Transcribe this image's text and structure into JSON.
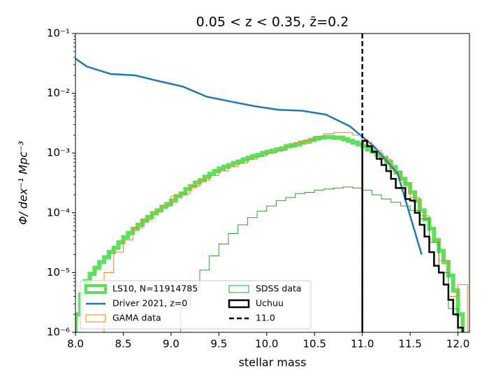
{
  "chart_data": {
    "type": "histogram",
    "title": "0.05 < z < 0.35, z̄=0.2",
    "x_label": "stellar mass",
    "y_label": "Φ/ dex⁻¹ Mpc⁻³",
    "yscale": "log",
    "xlim": [
      8.0,
      12.12
    ],
    "ylim": [
      1e-06,
      0.1
    ],
    "xticks": [
      {
        "value": 8,
        "label": "8.0"
      },
      8.5,
      {
        "value": 9,
        "label": "9.0"
      },
      9.5,
      {
        "value": 10,
        "label": "10.0"
      },
      10.5,
      {
        "value": 11,
        "label": "11.0"
      },
      11.5,
      {
        "value": 12,
        "label": "12.0"
      }
    ],
    "yticks": [
      {
        "value": 1e-06,
        "label": "10⁻⁶"
      },
      {
        "value": 1e-05,
        "label": "10⁻⁵"
      },
      {
        "value": 0.0001,
        "label": "10⁻⁴"
      },
      {
        "value": 0.001,
        "label": "10⁻³"
      },
      {
        "value": 0.01,
        "label": "10⁻²"
      },
      {
        "value": 0.1,
        "label": "10⁻¹"
      }
    ],
    "legend": "lower left",
    "legend_columns": 2,
    "series": [
      {
        "name": "LS10, N=11914785",
        "style": "step",
        "color": "#5ee05e",
        "width": 6,
        "bins": [
          8.0,
          8.05,
          8.1,
          8.15,
          8.2,
          8.25,
          8.3,
          8.35,
          8.4,
          8.45,
          8.5,
          8.55,
          8.6,
          8.65,
          8.7,
          8.75,
          8.8,
          8.85,
          8.9,
          8.95,
          9.0,
          9.05,
          9.1,
          9.15,
          9.2,
          9.25,
          9.3,
          9.35,
          9.4,
          9.45,
          9.5,
          9.55,
          9.6,
          9.65,
          9.7,
          9.75,
          9.8,
          9.85,
          9.9,
          9.95,
          10.0,
          10.05,
          10.1,
          10.15,
          10.2,
          10.25,
          10.3,
          10.35,
          10.4,
          10.45,
          10.5,
          10.55,
          10.6,
          10.65,
          10.7,
          10.75,
          10.8,
          10.85,
          10.9,
          10.95,
          11.0,
          11.05,
          11.1,
          11.15,
          11.2,
          11.25,
          11.3,
          11.35,
          11.4,
          11.45,
          11.5,
          11.55,
          11.6,
          11.65,
          11.7,
          11.75,
          11.8,
          11.85,
          11.9,
          11.95,
          12.0,
          12.05
        ],
        "values": [
          2e-06,
          4.3e-06,
          7.2e-06,
          9.5e-06,
          1.2e-05,
          1.5e-05,
          1.8e-05,
          2.2e-05,
          2.6e-05,
          3.2e-05,
          3.9e-05,
          4.6e-05,
          5.4e-05,
          6.3e-05,
          7.4e-05,
          8.5e-05,
          9.8e-05,
          0.00011,
          0.000126,
          0.00014,
          0.00016,
          0.00019,
          0.00021,
          0.00025,
          0.00028,
          0.00032,
          0.00035,
          0.0004,
          0.00045,
          0.0005,
          0.00055,
          0.00059,
          0.00063,
          0.00068,
          0.00072,
          0.00078,
          0.00083,
          0.00089,
          0.00093,
          0.001,
          0.00105,
          0.0011,
          0.00115,
          0.0012,
          0.0013,
          0.00135,
          0.0014,
          0.0015,
          0.00155,
          0.00165,
          0.00175,
          0.0018,
          0.00185,
          0.00185,
          0.0018,
          0.0018,
          0.0017,
          0.0016,
          0.0015,
          0.0014,
          0.0013,
          0.00115,
          0.00105,
          0.00093,
          0.00083,
          0.00071,
          0.00058,
          0.00047,
          0.00037,
          0.0003,
          0.00022,
          0.00016,
          0.00011,
          7.8e-05,
          5.4e-05,
          3.5e-05,
          2.3e-05,
          1.5e-05,
          8.9e-06,
          5e-06,
          2e-06
        ]
      },
      {
        "name": "Driver 2021, z=0",
        "style": "line",
        "color": "#1f77b4",
        "width": 2.5,
        "x": [
          8.0,
          8.12,
          8.37,
          8.62,
          8.87,
          9.12,
          9.37,
          9.62,
          9.87,
          10.12,
          10.37,
          10.62,
          10.87,
          11.12,
          11.37,
          11.62
        ],
        "values": [
          0.038,
          0.028,
          0.021,
          0.02,
          0.016,
          0.013,
          0.0088,
          0.0073,
          0.0061,
          0.0053,
          0.0051,
          0.0044,
          0.0028,
          0.0013,
          0.00045,
          2e-05
        ]
      },
      {
        "name": "GAMA data",
        "style": "step",
        "color": "#ff7f0e",
        "width": 1,
        "bins": [
          8.3,
          8.4,
          8.5,
          8.6,
          8.7,
          8.8,
          8.9,
          9.0,
          9.1,
          9.2,
          9.3,
          9.4,
          9.5,
          9.6,
          9.7,
          9.8,
          9.9,
          10.0,
          10.1,
          10.2,
          10.3,
          10.4,
          10.5,
          10.6,
          10.7,
          10.8,
          10.9,
          11.0,
          11.1,
          11.2,
          11.3,
          11.4,
          11.5,
          11.6,
          11.7,
          11.8,
          11.9,
          12.0,
          12.1
        ],
        "values": [
          1e-05,
          2.2e-05,
          3.5e-05,
          5.6e-05,
          7.6e-05,
          0.000105,
          0.00013,
          0.00019,
          0.00021,
          0.00028,
          0.00035,
          0.00042,
          0.0005,
          0.00059,
          0.00068,
          0.00079,
          0.00089,
          0.001,
          0.0011,
          0.0013,
          0.0015,
          0.00165,
          0.0019,
          0.0021,
          0.0022,
          0.0022,
          0.002,
          0.0015,
          0.0011,
          0.00079,
          0.0005,
          0.00032,
          0.00018,
          8.9e-05,
          3.5e-05,
          1.6e-05,
          4e-06,
          6.3e-06
        ]
      },
      {
        "name": "SDSS data",
        "style": "step",
        "color": "#2ca02c",
        "width": 1,
        "bins": [
          9.0,
          9.1,
          9.2,
          9.3,
          9.4,
          9.5,
          9.6,
          9.7,
          9.8,
          9.9,
          10.0,
          10.1,
          10.2,
          10.3,
          10.4,
          10.5,
          10.6,
          10.7,
          10.8,
          10.9,
          11.0,
          11.1,
          11.2,
          11.3,
          11.4,
          11.5,
          11.6,
          11.7,
          11.8,
          11.9,
          12.0
        ],
        "values": [
          1e-06,
          2.5e-06,
          5.6e-06,
          1.1e-05,
          1.9e-05,
          3e-05,
          4.5e-05,
          6.3e-05,
          8.3e-05,
          0.000107,
          0.00013,
          0.00016,
          0.00018,
          0.00021,
          0.00022,
          0.00024,
          0.00025,
          0.00026,
          0.00027,
          0.00026,
          0.00024,
          0.0002,
          0.00017,
          0.00015,
          0.00013,
          0.00011,
          7.9e-05,
          3.2e-05,
          1e-05,
          2.5e-06
        ]
      },
      {
        "name": "Uchuu",
        "style": "step",
        "color": "#000000",
        "width": 2.5,
        "bins": [
          11.0,
          11.05,
          11.1,
          11.15,
          11.2,
          11.25,
          11.3,
          11.35,
          11.4,
          11.45,
          11.5,
          11.55,
          11.6,
          11.65,
          11.7,
          11.75,
          11.8,
          11.85,
          11.9,
          11.95,
          12.0,
          12.05
        ],
        "values": [
          0.0016,
          0.0013,
          0.00105,
          0.0008,
          0.00063,
          0.0005,
          0.00037,
          0.00026,
          0.00026,
          0.00017,
          0.00016,
          0.0001,
          6.3e-05,
          4e-05,
          2.2e-05,
          1.3e-05,
          1e-05,
          6.3e-06,
          3.5e-06,
          2e-06,
          1.2e-06
        ]
      }
    ],
    "vline": {
      "name": "11.0",
      "x": 11,
      "color": "#000000",
      "dash": true
    }
  }
}
